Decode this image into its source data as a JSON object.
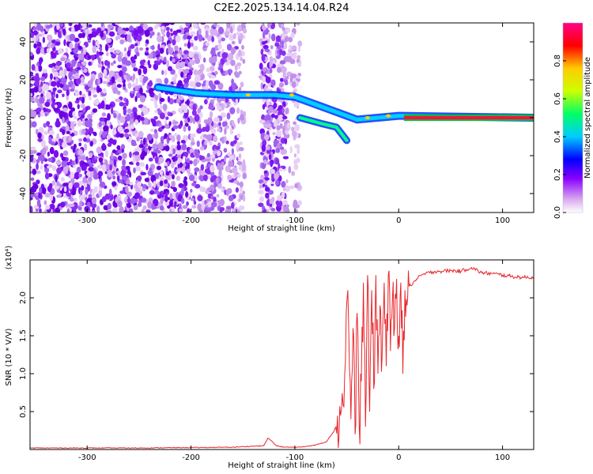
{
  "title": "C2E2.2025.134.14.04.R24",
  "chart_data": [
    {
      "type": "heatmap",
      "title": "C2E2.2025.134.14.04.R24",
      "xlabel": "Height of straight line (km)",
      "ylabel": "Frequency (Hz)",
      "xlim": [
        -355,
        130
      ],
      "ylim": [
        -50,
        50
      ],
      "xticks": [
        -300,
        -200,
        -100,
        0,
        100
      ],
      "yticks": [
        -40,
        -20,
        0,
        20,
        40
      ],
      "colorbar": {
        "label": "Normalized spectral amplitude",
        "range": [
          0,
          1
        ],
        "ticks": [
          0.0,
          0.2,
          0.4,
          0.6,
          0.8
        ],
        "colors": [
          "#ffffff",
          "#d9a8f0",
          "#8800ff",
          "#0000ff",
          "#00ccff",
          "#00ff66",
          "#ccff00",
          "#ffcc00",
          "#ff0000",
          "#ff0088"
        ]
      },
      "track": [
        {
          "x": -232,
          "y": 16
        },
        {
          "x": -195,
          "y": 13
        },
        {
          "x": -160,
          "y": 12
        },
        {
          "x": -120,
          "y": 12
        },
        {
          "x": -100,
          "y": 11
        },
        {
          "x": -75,
          "y": 6
        },
        {
          "x": -55,
          "y": 2
        },
        {
          "x": -40,
          "y": -1
        },
        {
          "x": -20,
          "y": 0
        },
        {
          "x": 0,
          "y": 1
        },
        {
          "x": 130,
          "y": 0
        }
      ],
      "secondary_track": [
        {
          "x": -95,
          "y": 0
        },
        {
          "x": -75,
          "y": -3
        },
        {
          "x": -60,
          "y": -5
        },
        {
          "x": -50,
          "y": -12
        }
      ]
    },
    {
      "type": "line",
      "xlabel": "Height of straight line (km)",
      "ylabel": "SNR (10 * V/V)",
      "ymultiplier": "(x10⁴)",
      "xlim": [
        -355,
        130
      ],
      "ylim": [
        0,
        2.5
      ],
      "xticks": [
        -300,
        -200,
        -100,
        0,
        100
      ],
      "yticks": [
        0.5,
        1.0,
        1.5,
        2.0
      ],
      "series": [
        {
          "color": "#e8262b",
          "x": [
            -355,
            -250,
            -160,
            -130,
            -126,
            -123,
            -118,
            -110,
            -95,
            -80,
            -70,
            -62,
            -56,
            -52,
            -49,
            -46,
            -44,
            -42,
            -40,
            -38,
            -36,
            -34,
            -32,
            -30,
            -28,
            -26,
            -24,
            -22,
            -20,
            -18,
            -16,
            -14,
            -12,
            -10,
            -8,
            -6,
            -4,
            -2,
            0,
            2,
            4,
            6,
            8,
            10,
            14,
            18,
            22,
            26,
            30,
            35,
            40,
            50,
            60,
            70,
            80,
            90,
            100,
            110,
            120,
            130
          ],
          "y": [
            0.02,
            0.02,
            0.03,
            0.05,
            0.15,
            0.12,
            0.05,
            0.03,
            0.03,
            0.06,
            0.1,
            0.25,
            0.45,
            1.0,
            2.1,
            0.4,
            1.6,
            0.2,
            1.8,
            0.3,
            0.9,
            2.2,
            0.3,
            2.3,
            0.5,
            2.1,
            0.8,
            2.3,
            1.0,
            1.9,
            1.2,
            2.2,
            1.1,
            2.3,
            1.3,
            2.0,
            1.6,
            2.25,
            1.5,
            2.2,
            1.0,
            2.1,
            1.9,
            2.15,
            2.2,
            2.25,
            2.3,
            2.32,
            2.33,
            2.35,
            2.35,
            2.36,
            2.35,
            2.4,
            2.33,
            2.32,
            2.3,
            2.28,
            2.27,
            2.27
          ]
        }
      ]
    }
  ]
}
